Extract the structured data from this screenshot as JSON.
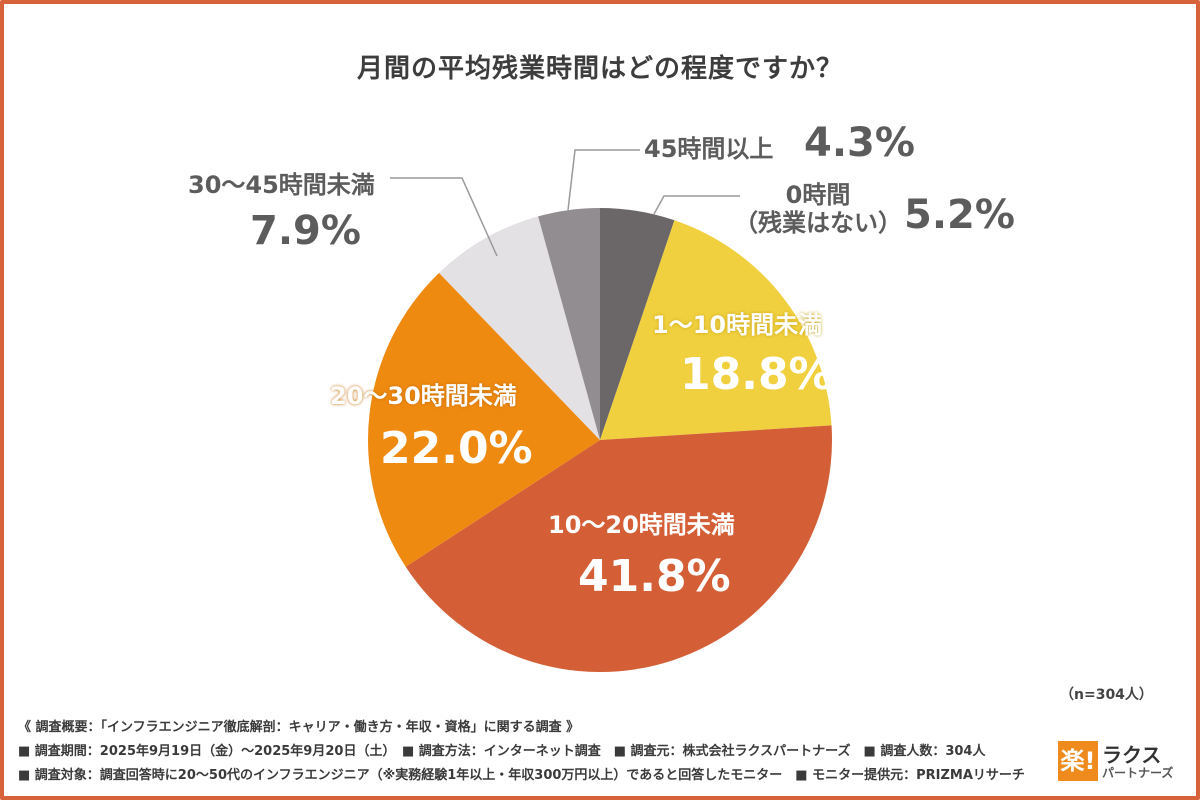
{
  "title": "月間の平均残業時間はどの程度ですか？",
  "chart_data": {
    "type": "pie",
    "start_angle_deg": 0,
    "direction": "clockwise",
    "slices": [
      {
        "label": "0時間\n（残業はない）",
        "label_line1": "0時間",
        "label_line2": "（残業はない）",
        "value": 5.2,
        "value_label": "5.2%",
        "color": "#6b6769"
      },
      {
        "label": "1～10時間未満",
        "value": 18.8,
        "value_label": "18.8%",
        "color": "#f0d03e"
      },
      {
        "label": "10～20時間未満",
        "value": 41.8,
        "value_label": "41.8%",
        "color": "#d45f37"
      },
      {
        "label": "20～30時間未満",
        "value": 22.0,
        "value_label": "22.0%",
        "color": "#ef8a11"
      },
      {
        "label": "30～45時間未満",
        "value": 7.9,
        "value_label": "7.9%",
        "color": "#e4e1e4"
      },
      {
        "label": "45時間以上",
        "value": 4.3,
        "value_label": "4.3%",
        "color": "#918d90"
      }
    ]
  },
  "sample_size": "（n=304人）",
  "notes": [
    "《 調査概要：「インフラエンジニア徹底解剖：キャリア・働き方・年収・資格」に関する調査 》",
    "■ 調査期間：2025年9月19日（金）～2025年9月20日（土）　■ 調査方法：インターネット調査　■ 調査元：株式会社ラクスパートナーズ　■ 調査人数：304人",
    "■ 調査対象：調査回答時に20～50代のインフラエンジニア（※実務経験1年以上・年収300万円以上）であると回答したモニター　■ モニター提供元：PRIZMAリサーチ"
  ],
  "logo": {
    "mark": "楽!",
    "name": "ラクス",
    "sub": "パートナーズ"
  }
}
